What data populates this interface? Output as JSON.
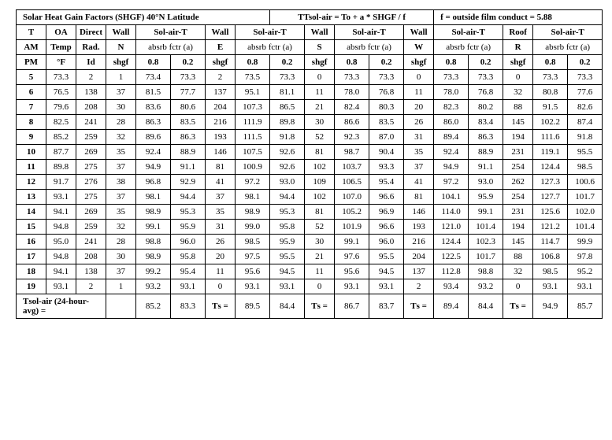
{
  "title_main": "Solar Heat Gain Factors (SHGF) 40°N Latitude",
  "title_formula": "Tsol-air = To + a * SHGF / f",
  "title_film": "f = outside film conduct = 5.88",
  "hdr": {
    "T": "T",
    "OA": "OA",
    "Direct": "Direct",
    "Wall": "Wall",
    "Roof": "Roof",
    "SolAirT": "Sol-air-T",
    "AM": "AM",
    "Temp": "Temp",
    "Rad": "Rad.",
    "N": "N",
    "E": "E",
    "S": "S",
    "W": "W",
    "R": "R",
    "absrb": "absrb fctr (a)",
    "PM": "PM",
    "degF": "°F",
    "Id": "Id",
    "shgf": "shgf",
    "p08": "0.8",
    "p02": "0.2"
  },
  "rows": [
    {
      "h": "5",
      "oa": "73.3",
      "dir": "2",
      "n_s": "1",
      "n8": "73.4",
      "n2": "73.3",
      "e_s": "2",
      "e8": "73.5",
      "e2": "73.3",
      "s_s": "0",
      "s8": "73.3",
      "s2": "73.3",
      "w_s": "0",
      "w8": "73.3",
      "w2": "73.3",
      "r_s": "0",
      "r8": "73.3",
      "r2": "73.3"
    },
    {
      "h": "6",
      "oa": "76.5",
      "dir": "138",
      "n_s": "37",
      "n8": "81.5",
      "n2": "77.7",
      "e_s": "137",
      "e8": "95.1",
      "e2": "81.1",
      "s_s": "11",
      "s8": "78.0",
      "s2": "76.8",
      "w_s": "11",
      "w8": "78.0",
      "w2": "76.8",
      "r_s": "32",
      "r8": "80.8",
      "r2": "77.6"
    },
    {
      "h": "7",
      "oa": "79.6",
      "dir": "208",
      "n_s": "30",
      "n8": "83.6",
      "n2": "80.6",
      "e_s": "204",
      "e8": "107.3",
      "e2": "86.5",
      "s_s": "21",
      "s8": "82.4",
      "s2": "80.3",
      "w_s": "20",
      "w8": "82.3",
      "w2": "80.2",
      "r_s": "88",
      "r8": "91.5",
      "r2": "82.6"
    },
    {
      "h": "8",
      "oa": "82.5",
      "dir": "241",
      "n_s": "28",
      "n8": "86.3",
      "n2": "83.5",
      "e_s": "216",
      "e8": "111.9",
      "e2": "89.8",
      "s_s": "30",
      "s8": "86.6",
      "s2": "83.5",
      "w_s": "26",
      "w8": "86.0",
      "w2": "83.4",
      "r_s": "145",
      "r8": "102.2",
      "r2": "87.4"
    },
    {
      "h": "9",
      "oa": "85.2",
      "dir": "259",
      "n_s": "32",
      "n8": "89.6",
      "n2": "86.3",
      "e_s": "193",
      "e8": "111.5",
      "e2": "91.8",
      "s_s": "52",
      "s8": "92.3",
      "s2": "87.0",
      "w_s": "31",
      "w8": "89.4",
      "w2": "86.3",
      "r_s": "194",
      "r8": "111.6",
      "r2": "91.8"
    },
    {
      "h": "10",
      "oa": "87.7",
      "dir": "269",
      "n_s": "35",
      "n8": "92.4",
      "n2": "88.9",
      "e_s": "146",
      "e8": "107.5",
      "e2": "92.6",
      "s_s": "81",
      "s8": "98.7",
      "s2": "90.4",
      "w_s": "35",
      "w8": "92.4",
      "w2": "88.9",
      "r_s": "231",
      "r8": "119.1",
      "r2": "95.5"
    },
    {
      "h": "11",
      "oa": "89.8",
      "dir": "275",
      "n_s": "37",
      "n8": "94.9",
      "n2": "91.1",
      "e_s": "81",
      "e8": "100.9",
      "e2": "92.6",
      "s_s": "102",
      "s8": "103.7",
      "s2": "93.3",
      "w_s": "37",
      "w8": "94.9",
      "w2": "91.1",
      "r_s": "254",
      "r8": "124.4",
      "r2": "98.5"
    },
    {
      "h": "12",
      "oa": "91.7",
      "dir": "276",
      "n_s": "38",
      "n8": "96.8",
      "n2": "92.9",
      "e_s": "41",
      "e8": "97.2",
      "e2": "93.0",
      "s_s": "109",
      "s8": "106.5",
      "s2": "95.4",
      "w_s": "41",
      "w8": "97.2",
      "w2": "93.0",
      "r_s": "262",
      "r8": "127.3",
      "r2": "100.6"
    },
    {
      "h": "13",
      "oa": "93.1",
      "dir": "275",
      "n_s": "37",
      "n8": "98.1",
      "n2": "94.4",
      "e_s": "37",
      "e8": "98.1",
      "e2": "94.4",
      "s_s": "102",
      "s8": "107.0",
      "s2": "96.6",
      "w_s": "81",
      "w8": "104.1",
      "w2": "95.9",
      "r_s": "254",
      "r8": "127.7",
      "r2": "101.7"
    },
    {
      "h": "14",
      "oa": "94.1",
      "dir": "269",
      "n_s": "35",
      "n8": "98.9",
      "n2": "95.3",
      "e_s": "35",
      "e8": "98.9",
      "e2": "95.3",
      "s_s": "81",
      "s8": "105.2",
      "s2": "96.9",
      "w_s": "146",
      "w8": "114.0",
      "w2": "99.1",
      "r_s": "231",
      "r8": "125.6",
      "r2": "102.0"
    },
    {
      "h": "15",
      "oa": "94.8",
      "dir": "259",
      "n_s": "32",
      "n8": "99.1",
      "n2": "95.9",
      "e_s": "31",
      "e8": "99.0",
      "e2": "95.8",
      "s_s": "52",
      "s8": "101.9",
      "s2": "96.6",
      "w_s": "193",
      "w8": "121.0",
      "w2": "101.4",
      "r_s": "194",
      "r8": "121.2",
      "r2": "101.4"
    },
    {
      "h": "16",
      "oa": "95.0",
      "dir": "241",
      "n_s": "28",
      "n8": "98.8",
      "n2": "96.0",
      "e_s": "26",
      "e8": "98.5",
      "e2": "95.9",
      "s_s": "30",
      "s8": "99.1",
      "s2": "96.0",
      "w_s": "216",
      "w8": "124.4",
      "w2": "102.3",
      "r_s": "145",
      "r8": "114.7",
      "r2": "99.9"
    },
    {
      "h": "17",
      "oa": "94.8",
      "dir": "208",
      "n_s": "30",
      "n8": "98.9",
      "n2": "95.8",
      "e_s": "20",
      "e8": "97.5",
      "e2": "95.5",
      "s_s": "21",
      "s8": "97.6",
      "s2": "95.5",
      "w_s": "204",
      "w8": "122.5",
      "w2": "101.7",
      "r_s": "88",
      "r8": "106.8",
      "r2": "97.8"
    },
    {
      "h": "18",
      "oa": "94.1",
      "dir": "138",
      "n_s": "37",
      "n8": "99.2",
      "n2": "95.4",
      "e_s": "11",
      "e8": "95.6",
      "e2": "94.5",
      "s_s": "11",
      "s8": "95.6",
      "s2": "94.5",
      "w_s": "137",
      "w8": "112.8",
      "w2": "98.8",
      "r_s": "32",
      "r8": "98.5",
      "r2": "95.2"
    },
    {
      "h": "19",
      "oa": "93.1",
      "dir": "2",
      "n_s": "1",
      "n8": "93.2",
      "n2": "93.1",
      "e_s": "0",
      "e8": "93.1",
      "e2": "93.1",
      "s_s": "0",
      "s8": "93.1",
      "s2": "93.1",
      "w_s": "2",
      "w8": "93.4",
      "w2": "93.2",
      "r_s": "0",
      "r8": "93.1",
      "r2": "93.1"
    }
  ],
  "footer": {
    "label": "Tsol-air (24-hour-avg) =",
    "ts": "Ts =",
    "n8": "85.2",
    "n2": "83.3",
    "e8": "89.5",
    "e2": "84.4",
    "s8": "86.7",
    "s2": "83.7",
    "w8": "89.4",
    "w2": "84.4",
    "r8": "94.9",
    "r2": "85.7"
  }
}
